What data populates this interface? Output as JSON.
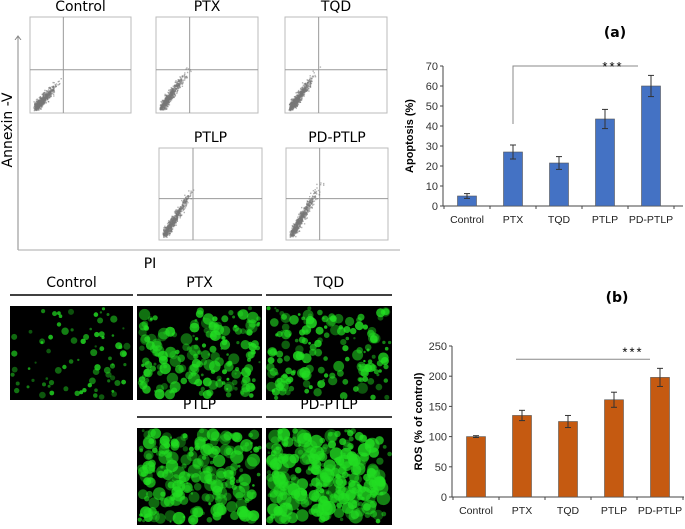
{
  "panel_labels": {
    "a": "(a)",
    "b": "(b)"
  },
  "flow": {
    "y_axis_label": "Annexin -V",
    "x_axis_label": "PI",
    "plots": [
      {
        "label": "Control",
        "spread": 0.9
      },
      {
        "label": "PTX",
        "spread": 1.3
      },
      {
        "label": "TQD",
        "spread": 1.2
      },
      {
        "label": "PTLP",
        "spread": 1.6
      },
      {
        "label": "PD-PTLP",
        "spread": 1.8
      }
    ]
  },
  "fluorescence": {
    "images": [
      {
        "label": "Control",
        "density": 0.15
      },
      {
        "label": "PTX",
        "density": 0.6
      },
      {
        "label": "TQD",
        "density": 0.5
      },
      {
        "label": "PTLP",
        "density": 0.75
      },
      {
        "label": "PD-PTLP",
        "density": 0.95
      }
    ],
    "color": "#22dd22"
  },
  "chart_data": [
    {
      "type": "bar",
      "ylabel": "Apoptosis (%)",
      "categories": [
        "Control",
        "PTX",
        "TQD",
        "PTLP",
        "PD-PTLP"
      ],
      "values": [
        5,
        27,
        21.5,
        43.5,
        60
      ],
      "errors": [
        1.2,
        3.5,
        3.2,
        4.8,
        5.3
      ],
      "ylim": [
        0,
        70
      ],
      "yticks": [
        0,
        10,
        20,
        30,
        40,
        50,
        60,
        70
      ],
      "color": "#4472c4",
      "significance": {
        "from": "PTX",
        "to": "PD-PTLP",
        "label": "***"
      },
      "grid": false
    },
    {
      "type": "bar",
      "ylabel": "ROS (% of control)",
      "categories": [
        "Control",
        "PTX",
        "TQD",
        "PTLP",
        "PD-PTLP"
      ],
      "values": [
        100,
        135,
        125,
        161,
        198
      ],
      "errors": [
        1.5,
        8.5,
        10,
        12.5,
        15
      ],
      "ylim": [
        0,
        250
      ],
      "yticks": [
        0,
        50,
        100,
        150,
        200,
        250
      ],
      "color": "#c55a11",
      "significance": {
        "from": "PTX",
        "to": "PD-PTLP",
        "label": "***"
      },
      "grid": false
    }
  ]
}
